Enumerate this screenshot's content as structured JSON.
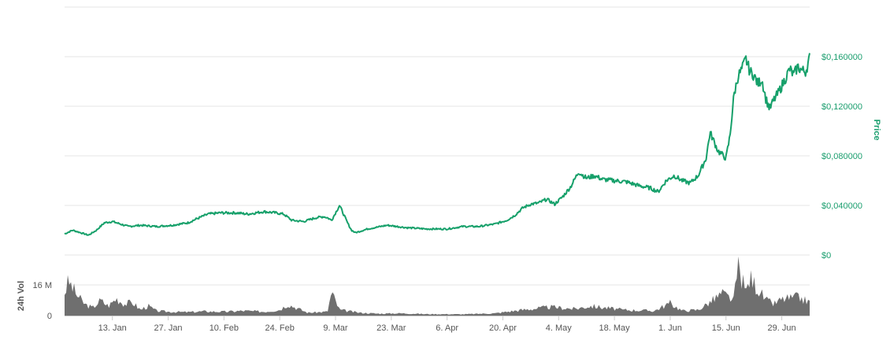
{
  "colors": {
    "price_line": "#16a06a",
    "price_axis_text": "#1a9e6e",
    "volume_fill": "#6f6f6f",
    "grid": "#e6e6e6",
    "axis_text": "#555555"
  },
  "chart_data": {
    "type": "line",
    "title": "",
    "price_axis": {
      "label": "Price",
      "ticks": [
        "$0",
        "$0,040000",
        "$0,080000",
        "$0,120000",
        "$0,160000"
      ],
      "tick_values": [
        0,
        0.04,
        0.08,
        0.12,
        0.16
      ],
      "ylim": [
        0,
        0.2
      ]
    },
    "volume_axis": {
      "label": "24h Vol",
      "ticks": [
        "0",
        "16 M"
      ],
      "tick_values": [
        0,
        16000000
      ],
      "ylim": [
        0,
        33000000
      ]
    },
    "x_axis": {
      "ticks": [
        "13. Jan",
        "27. Jan",
        "10. Feb",
        "24. Feb",
        "9. Mar",
        "23. Mar",
        "6. Apr",
        "20. Apr",
        "4. May",
        "18. May",
        "1. Jun",
        "15. Jun",
        "29. Jun"
      ],
      "range": [
        "2020-01-01",
        "2020-07-06"
      ]
    },
    "legend": "none",
    "grid": true,
    "series": [
      {
        "name": "Price",
        "x": [
          "2020-01-01",
          "2020-01-03",
          "2020-01-05",
          "2020-01-07",
          "2020-01-09",
          "2020-01-11",
          "2020-01-13",
          "2020-01-15",
          "2020-01-17",
          "2020-01-20",
          "2020-01-24",
          "2020-01-28",
          "2020-02-01",
          "2020-02-03",
          "2020-02-06",
          "2020-02-09",
          "2020-02-13",
          "2020-02-16",
          "2020-02-20",
          "2020-02-23",
          "2020-02-25",
          "2020-02-27",
          "2020-03-01",
          "2020-03-04",
          "2020-03-06",
          "2020-03-07",
          "2020-03-08",
          "2020-03-10",
          "2020-03-12",
          "2020-03-13",
          "2020-03-14",
          "2020-03-17",
          "2020-03-22",
          "2020-03-27",
          "2020-04-01",
          "2020-04-06",
          "2020-04-10",
          "2020-04-14",
          "2020-04-18",
          "2020-04-21",
          "2020-04-23",
          "2020-04-25",
          "2020-04-27",
          "2020-04-29",
          "2020-05-01",
          "2020-05-03",
          "2020-05-05",
          "2020-05-07",
          "2020-05-09",
          "2020-05-11",
          "2020-05-13",
          "2020-05-15",
          "2020-05-18",
          "2020-05-21",
          "2020-05-24",
          "2020-05-27",
          "2020-05-29",
          "2020-05-31",
          "2020-06-02",
          "2020-06-04",
          "2020-06-06",
          "2020-06-08",
          "2020-06-10",
          "2020-06-11",
          "2020-06-13",
          "2020-06-15",
          "2020-06-16",
          "2020-06-17",
          "2020-06-18",
          "2020-06-19",
          "2020-06-20",
          "2020-06-21",
          "2020-06-22",
          "2020-06-23",
          "2020-06-24",
          "2020-06-25",
          "2020-06-26",
          "2020-06-27",
          "2020-06-28",
          "2020-06-30",
          "2020-07-01",
          "2020-07-02",
          "2020-07-03",
          "2020-07-04",
          "2020-07-05",
          "2020-07-06"
        ],
        "y": [
          0.017,
          0.02,
          0.018,
          0.016,
          0.02,
          0.026,
          0.027,
          0.025,
          0.023,
          0.024,
          0.023,
          0.024,
          0.026,
          0.029,
          0.033,
          0.034,
          0.034,
          0.033,
          0.035,
          0.034,
          0.033,
          0.028,
          0.027,
          0.03,
          0.031,
          0.03,
          0.028,
          0.04,
          0.026,
          0.02,
          0.018,
          0.021,
          0.024,
          0.022,
          0.021,
          0.021,
          0.023,
          0.023,
          0.025,
          0.028,
          0.032,
          0.038,
          0.041,
          0.042,
          0.045,
          0.041,
          0.047,
          0.055,
          0.067,
          0.062,
          0.064,
          0.061,
          0.06,
          0.059,
          0.056,
          0.054,
          0.051,
          0.06,
          0.064,
          0.06,
          0.058,
          0.064,
          0.078,
          0.099,
          0.084,
          0.078,
          0.096,
          0.129,
          0.144,
          0.15,
          0.158,
          0.148,
          0.145,
          0.138,
          0.142,
          0.126,
          0.118,
          0.125,
          0.13,
          0.143,
          0.15,
          0.145,
          0.152,
          0.149,
          0.148,
          0.159
        ]
      },
      {
        "name": "24h Vol",
        "x": [
          "2020-01-01",
          "2020-01-02",
          "2020-01-04",
          "2020-01-06",
          "2020-01-08",
          "2020-01-10",
          "2020-01-12",
          "2020-01-14",
          "2020-01-16",
          "2020-01-18",
          "2020-01-20",
          "2020-01-22",
          "2020-01-24",
          "2020-01-27",
          "2020-02-01",
          "2020-02-05",
          "2020-02-10",
          "2020-02-15",
          "2020-02-20",
          "2020-02-24",
          "2020-02-26",
          "2020-03-02",
          "2020-03-07",
          "2020-03-08",
          "2020-03-10",
          "2020-03-15",
          "2020-03-20",
          "2020-03-25",
          "2020-04-01",
          "2020-04-10",
          "2020-04-18",
          "2020-04-25",
          "2020-05-02",
          "2020-05-08",
          "2020-05-12",
          "2020-05-20",
          "2020-05-28",
          "2020-06-01",
          "2020-06-04",
          "2020-06-08",
          "2020-06-11",
          "2020-06-14",
          "2020-06-17",
          "2020-06-18",
          "2020-06-20",
          "2020-06-21",
          "2020-06-23",
          "2020-06-25",
          "2020-06-27",
          "2020-06-29",
          "2020-07-01",
          "2020-07-03",
          "2020-07-06"
        ],
        "y": [
          12000000,
          18000000,
          11000000,
          6000000,
          4000000,
          8000000,
          5000000,
          9000000,
          6000000,
          7000000,
          3000000,
          5000000,
          2500000,
          2000000,
          1800000,
          2200000,
          2000000,
          2500000,
          2000000,
          3000000,
          6000000,
          1500000,
          2000000,
          12000000,
          3000000,
          1500000,
          1000000,
          1200000,
          800000,
          700000,
          1200000,
          3000000,
          4500000,
          3500000,
          5000000,
          3000000,
          2500000,
          6500000,
          2500000,
          3000000,
          7000000,
          11500000,
          8000000,
          26000000,
          12000000,
          20000000,
          14000000,
          8000000,
          6000000,
          8500000,
          9000000,
          9500000,
          7000000
        ]
      }
    ]
  }
}
